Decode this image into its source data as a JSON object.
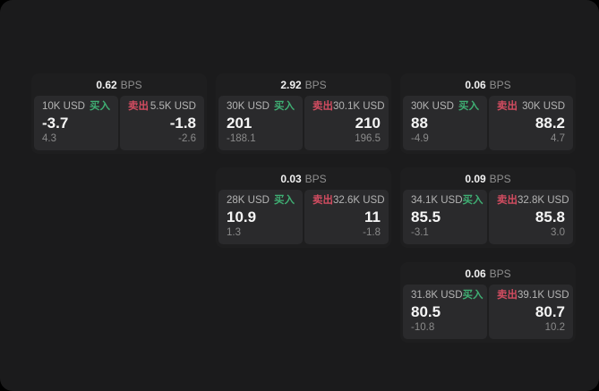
{
  "labels": {
    "bps": "BPS",
    "buy": "买入",
    "sell": "卖出"
  },
  "colors": {
    "buy": "#3fae73",
    "sell": "#d14c60",
    "page_bg": "#1b1b1c",
    "card_bg": "#1e1e1f",
    "panel_bg": "#2a2a2c",
    "price_text": "#f5f5f5",
    "amount_text": "#b4b4b4",
    "delta_text": "#8a8a8a"
  },
  "cards": [
    {
      "bps": "0.62",
      "buy": {
        "amount": "10K USD",
        "value": "-3.7",
        "delta": "4.3"
      },
      "sell": {
        "amount": "5.5K USD",
        "value": "-1.8",
        "delta": "-2.6"
      }
    },
    {
      "bps": "2.92",
      "buy": {
        "amount": "30K USD",
        "value": "201",
        "delta": "-188.1"
      },
      "sell": {
        "amount": "30.1K USD",
        "value": "210",
        "delta": "196.5"
      }
    },
    {
      "bps": "0.06",
      "buy": {
        "amount": "30K USD",
        "value": "88",
        "delta": "-4.9"
      },
      "sell": {
        "amount": "30K USD",
        "value": "88.2",
        "delta": "4.7"
      }
    },
    {
      "bps": "0.03",
      "buy": {
        "amount": "28K USD",
        "value": "10.9",
        "delta": "1.3"
      },
      "sell": {
        "amount": "32.6K USD",
        "value": "11",
        "delta": "-1.8"
      }
    },
    {
      "bps": "0.09",
      "buy": {
        "amount": "34.1K USD",
        "value": "85.5",
        "delta": "-3.1"
      },
      "sell": {
        "amount": "32.8K USD",
        "value": "85.8",
        "delta": "3.0"
      }
    },
    {
      "bps": "0.06",
      "buy": {
        "amount": "31.8K USD",
        "value": "80.5",
        "delta": "-10.8"
      },
      "sell": {
        "amount": "39.1K USD",
        "value": "80.7",
        "delta": "10.2"
      }
    }
  ]
}
